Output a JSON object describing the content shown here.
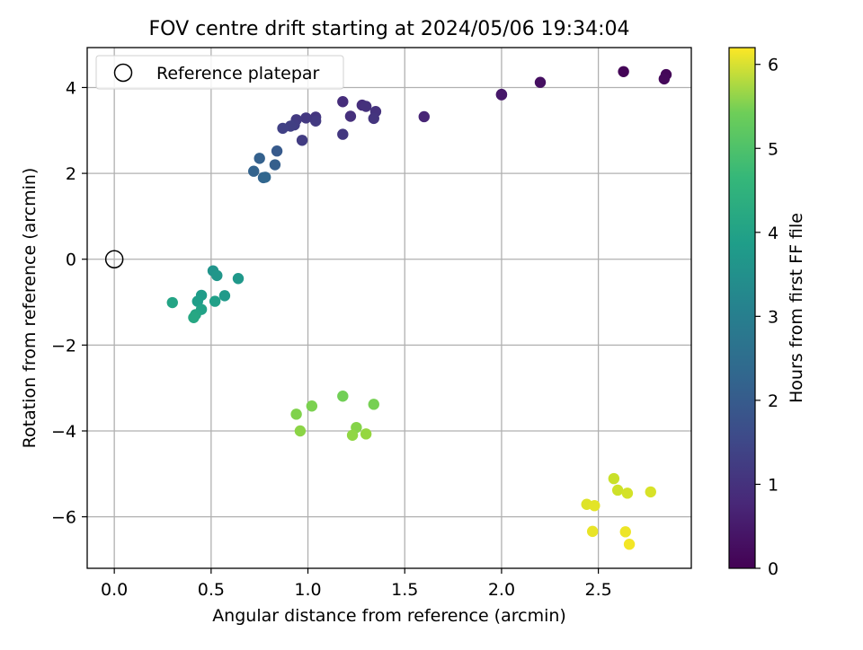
{
  "chart_data": {
    "type": "scatter",
    "title": "FOV centre drift starting at 2024/05/06 19:34:04",
    "xlabel": "Angular distance from reference (arcmin)",
    "ylabel": "Rotation from reference (arcmin)",
    "xlim": [
      -0.14,
      2.98
    ],
    "ylim": [
      -7.2,
      4.93
    ],
    "x_ticks": [
      0.0,
      0.5,
      1.0,
      1.5,
      2.0,
      2.5
    ],
    "x_tick_labels": [
      "0.0",
      "0.5",
      "1.0",
      "1.5",
      "2.0",
      "2.5"
    ],
    "y_ticks": [
      4,
      2,
      0,
      -2,
      -4,
      -6
    ],
    "y_tick_labels": [
      "4",
      "2",
      "0",
      "−2",
      "−4",
      "−6"
    ],
    "grid": true,
    "legend": {
      "position": "top-left",
      "entries": [
        "Reference platepar"
      ]
    },
    "colorbar": {
      "label": "Hours from first FF file",
      "colormap": "viridis",
      "range": [
        0,
        6.2
      ],
      "ticks": [
        0,
        1,
        2,
        3,
        4,
        5,
        6
      ],
      "tick_labels": [
        "0",
        "1",
        "2",
        "3",
        "4",
        "5",
        "6"
      ]
    },
    "reference_point": {
      "x": 0.0,
      "y": 0.0
    },
    "points": [
      {
        "x": 2.63,
        "y": 4.37,
        "c": 0.05
      },
      {
        "x": 2.85,
        "y": 4.3,
        "c": 0.08
      },
      {
        "x": 2.84,
        "y": 4.2,
        "c": 0.12
      },
      {
        "x": 2.2,
        "y": 4.12,
        "c": 0.25
      },
      {
        "x": 2.0,
        "y": 3.84,
        "c": 0.38
      },
      {
        "x": 2.0,
        "y": 3.83,
        "c": 0.4
      },
      {
        "x": 1.6,
        "y": 3.32,
        "c": 0.65
      },
      {
        "x": 1.18,
        "y": 3.67,
        "c": 0.8
      },
      {
        "x": 1.22,
        "y": 3.33,
        "c": 0.85
      },
      {
        "x": 1.28,
        "y": 3.59,
        "c": 0.82
      },
      {
        "x": 1.3,
        "y": 3.56,
        "c": 0.87
      },
      {
        "x": 1.35,
        "y": 3.44,
        "c": 0.9
      },
      {
        "x": 1.34,
        "y": 3.28,
        "c": 0.95
      },
      {
        "x": 1.18,
        "y": 2.91,
        "c": 1.0
      },
      {
        "x": 1.04,
        "y": 3.31,
        "c": 0.98
      },
      {
        "x": 1.04,
        "y": 3.22,
        "c": 1.05
      },
      {
        "x": 0.99,
        "y": 3.29,
        "c": 1.02
      },
      {
        "x": 0.97,
        "y": 2.77,
        "c": 1.1
      },
      {
        "x": 0.94,
        "y": 3.25,
        "c": 1.05
      },
      {
        "x": 0.93,
        "y": 3.13,
        "c": 1.12
      },
      {
        "x": 0.91,
        "y": 3.1,
        "c": 1.15
      },
      {
        "x": 0.87,
        "y": 3.05,
        "c": 1.2
      },
      {
        "x": 0.84,
        "y": 2.52,
        "c": 1.75
      },
      {
        "x": 0.83,
        "y": 2.2,
        "c": 1.85
      },
      {
        "x": 0.75,
        "y": 2.35,
        "c": 1.9
      },
      {
        "x": 0.72,
        "y": 2.05,
        "c": 1.95
      },
      {
        "x": 0.77,
        "y": 1.9,
        "c": 2.0
      },
      {
        "x": 0.78,
        "y": 1.91,
        "c": 2.05
      },
      {
        "x": 0.51,
        "y": -0.27,
        "c": 3.2
      },
      {
        "x": 0.53,
        "y": -0.38,
        "c": 3.25
      },
      {
        "x": 0.64,
        "y": -0.45,
        "c": 3.3
      },
      {
        "x": 0.57,
        "y": -0.85,
        "c": 3.35
      },
      {
        "x": 0.45,
        "y": -0.84,
        "c": 3.4
      },
      {
        "x": 0.43,
        "y": -0.98,
        "c": 3.45
      },
      {
        "x": 0.52,
        "y": -0.98,
        "c": 3.5
      },
      {
        "x": 0.45,
        "y": -1.17,
        "c": 3.55
      },
      {
        "x": 0.3,
        "y": -1.01,
        "c": 3.6
      },
      {
        "x": 0.42,
        "y": -1.29,
        "c": 3.65
      },
      {
        "x": 0.41,
        "y": -1.36,
        "c": 3.7
      },
      {
        "x": 1.18,
        "y": -3.19,
        "c": 4.85
      },
      {
        "x": 1.34,
        "y": -3.38,
        "c": 4.9
      },
      {
        "x": 1.02,
        "y": -3.42,
        "c": 4.95
      },
      {
        "x": 0.94,
        "y": -3.61,
        "c": 5.0
      },
      {
        "x": 1.25,
        "y": -3.92,
        "c": 5.05
      },
      {
        "x": 0.96,
        "y": -4.0,
        "c": 5.1
      },
      {
        "x": 1.23,
        "y": -4.1,
        "c": 5.15
      },
      {
        "x": 1.3,
        "y": -4.07,
        "c": 5.2
      },
      {
        "x": 2.58,
        "y": -5.11,
        "c": 5.7
      },
      {
        "x": 2.6,
        "y": -5.38,
        "c": 5.75
      },
      {
        "x": 2.65,
        "y": -5.45,
        "c": 5.8
      },
      {
        "x": 2.77,
        "y": -5.42,
        "c": 5.85
      },
      {
        "x": 2.44,
        "y": -5.71,
        "c": 5.9
      },
      {
        "x": 2.48,
        "y": -5.74,
        "c": 5.95
      },
      {
        "x": 2.47,
        "y": -6.34,
        "c": 6.0
      },
      {
        "x": 2.64,
        "y": -6.35,
        "c": 6.05
      },
      {
        "x": 2.66,
        "y": -6.64,
        "c": 6.1
      }
    ]
  }
}
